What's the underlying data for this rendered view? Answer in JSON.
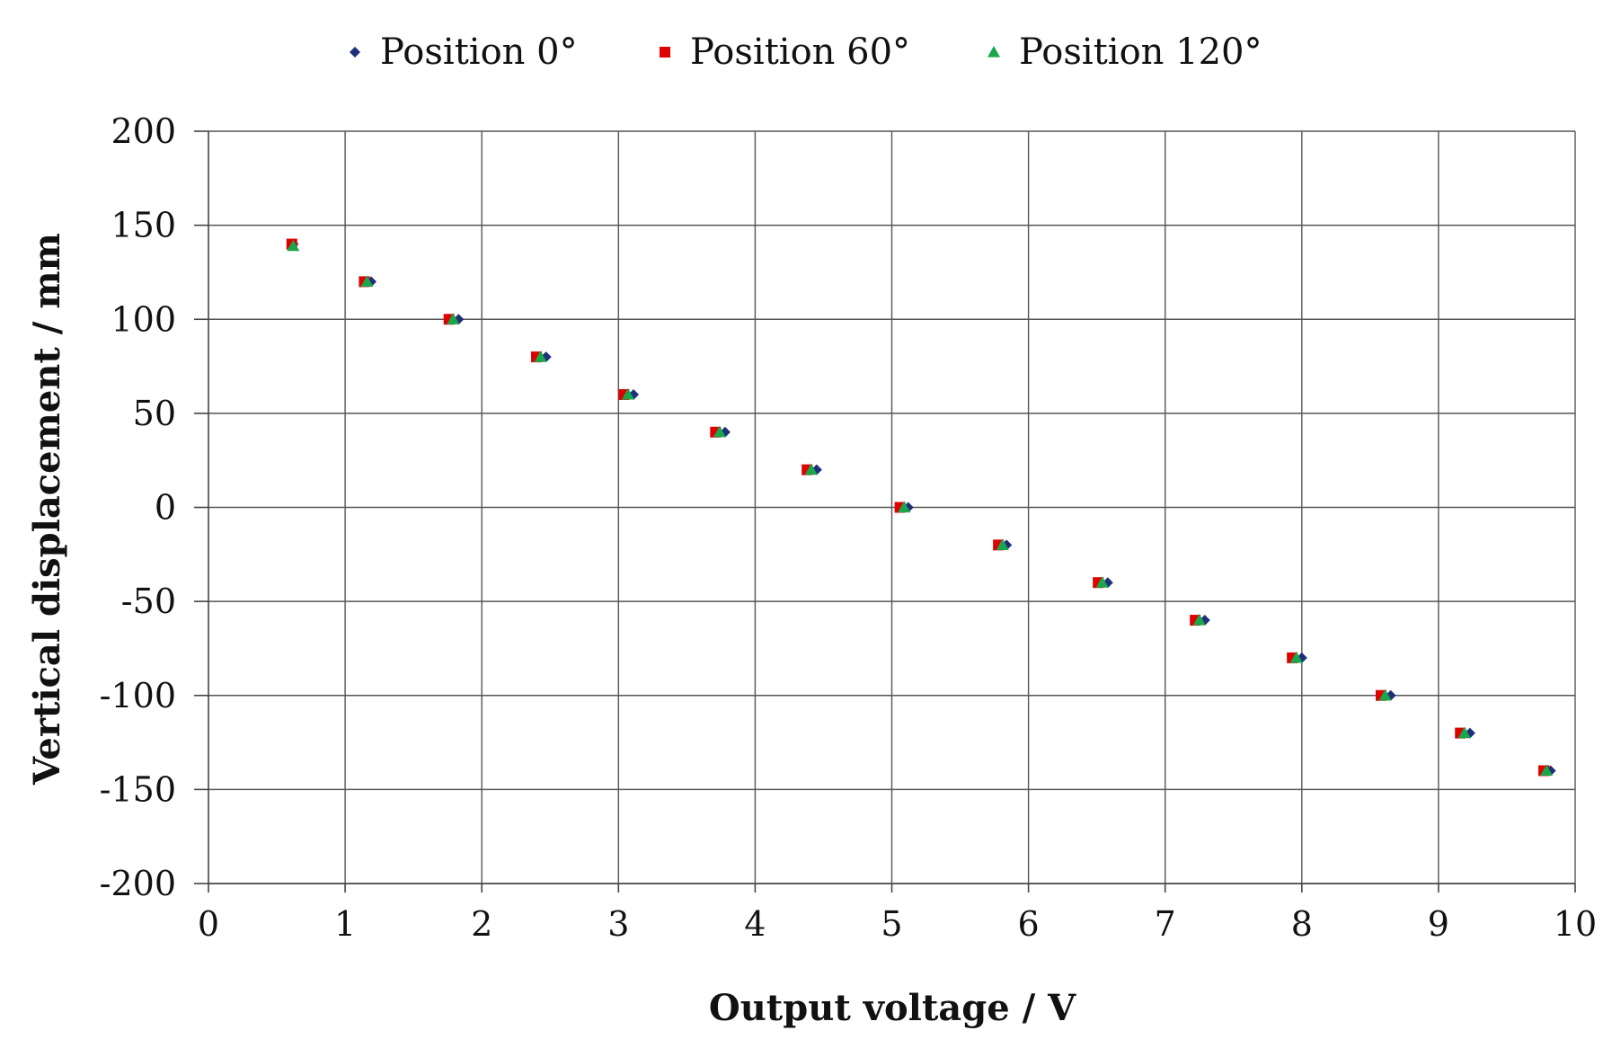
{
  "chart_data": {
    "type": "scatter",
    "xlabel": "Output voltage / V",
    "ylabel": "Vertical displacement / mm",
    "xlim": [
      0,
      10
    ],
    "ylim": [
      -200,
      200
    ],
    "xticks": [
      "0",
      "1",
      "2",
      "3",
      "4",
      "5",
      "6",
      "7",
      "8",
      "9",
      "10"
    ],
    "yticks": [
      "200",
      "150",
      "100",
      "50",
      "0",
      "-50",
      "-100",
      "-150",
      "-200"
    ],
    "grid": true,
    "legend_position": "top",
    "series": [
      {
        "name": "Position 0°",
        "marker": "diamond",
        "color": "#1f2f7a",
        "points": [
          [
            0.62,
            140
          ],
          [
            1.19,
            120
          ],
          [
            1.83,
            100
          ],
          [
            2.47,
            80
          ],
          [
            3.11,
            60
          ],
          [
            3.78,
            40
          ],
          [
            4.45,
            20
          ],
          [
            5.12,
            0
          ],
          [
            5.84,
            -20
          ],
          [
            6.58,
            -40
          ],
          [
            7.29,
            -60
          ],
          [
            8.0,
            -80
          ],
          [
            8.65,
            -100
          ],
          [
            9.23,
            -120
          ],
          [
            9.82,
            -140
          ]
        ]
      },
      {
        "name": "Position 60°",
        "marker": "square",
        "color": "#e00000",
        "points": [
          [
            0.61,
            140
          ],
          [
            1.14,
            120
          ],
          [
            1.76,
            100
          ],
          [
            2.4,
            80
          ],
          [
            3.04,
            60
          ],
          [
            3.71,
            40
          ],
          [
            4.38,
            20
          ],
          [
            5.06,
            0
          ],
          [
            5.78,
            -20
          ],
          [
            6.51,
            -40
          ],
          [
            7.22,
            -60
          ],
          [
            7.93,
            -80
          ],
          [
            8.58,
            -100
          ],
          [
            9.16,
            -120
          ],
          [
            9.77,
            -140
          ]
        ]
      },
      {
        "name": "Position 120°",
        "marker": "triangle",
        "color": "#1aa64a",
        "points": [
          [
            0.62,
            139
          ],
          [
            1.16,
            120
          ],
          [
            1.79,
            100
          ],
          [
            2.43,
            80
          ],
          [
            3.07,
            60
          ],
          [
            3.74,
            40
          ],
          [
            4.41,
            20
          ],
          [
            5.09,
            0
          ],
          [
            5.81,
            -20
          ],
          [
            6.54,
            -40
          ],
          [
            7.25,
            -60
          ],
          [
            7.96,
            -80
          ],
          [
            8.61,
            -100
          ],
          [
            9.19,
            -120
          ],
          [
            9.79,
            -140
          ]
        ]
      }
    ]
  }
}
